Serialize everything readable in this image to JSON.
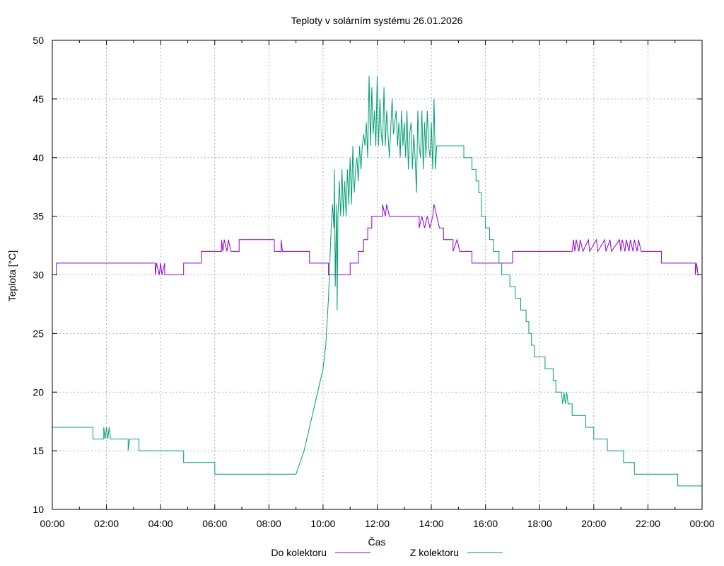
{
  "chart_data": {
    "type": "line",
    "title": "Teploty v solárním systému 26.01.2026",
    "xlabel": "Čas",
    "ylabel": "Teplota [°C]",
    "grid": true,
    "legend_position": "bottom",
    "xlim": [
      0,
      24
    ],
    "ylim": [
      10,
      50
    ],
    "x_tick_labels": [
      "00:00",
      "02:00",
      "04:00",
      "06:00",
      "08:00",
      "10:00",
      "12:00",
      "14:00",
      "16:00",
      "18:00",
      "20:00",
      "22:00",
      "00:00"
    ],
    "y_ticks": [
      10,
      15,
      20,
      25,
      30,
      35,
      40,
      45,
      50
    ],
    "series": [
      {
        "name": "Do kolektoru",
        "color": "#9400d3",
        "points": [
          [
            0,
            30
          ],
          [
            0.15,
            30
          ],
          [
            0.15,
            31
          ],
          [
            3.8,
            31
          ],
          [
            3.8,
            30
          ],
          [
            3.85,
            31
          ],
          [
            3.95,
            30
          ],
          [
            4.0,
            31
          ],
          [
            4.05,
            30
          ],
          [
            4.15,
            31
          ],
          [
            4.15,
            30
          ],
          [
            4.85,
            30
          ],
          [
            4.85,
            31
          ],
          [
            5.5,
            31
          ],
          [
            5.5,
            32
          ],
          [
            6.25,
            32
          ],
          [
            6.25,
            33
          ],
          [
            6.3,
            32
          ],
          [
            6.35,
            33
          ],
          [
            6.45,
            32
          ],
          [
            6.5,
            33
          ],
          [
            6.6,
            32
          ],
          [
            6.9,
            32
          ],
          [
            6.9,
            33
          ],
          [
            8.0,
            33
          ],
          [
            8.2,
            33
          ],
          [
            8.2,
            32
          ],
          [
            8.45,
            32
          ],
          [
            8.45,
            33
          ],
          [
            8.5,
            32
          ],
          [
            9.0,
            32
          ],
          [
            9.0,
            32
          ],
          [
            9.5,
            32
          ],
          [
            9.5,
            31
          ],
          [
            10.2,
            31
          ],
          [
            10.2,
            30
          ],
          [
            11.0,
            30
          ],
          [
            11.0,
            31
          ],
          [
            11.3,
            31
          ],
          [
            11.3,
            32
          ],
          [
            11.5,
            32
          ],
          [
            11.5,
            33
          ],
          [
            11.65,
            33
          ],
          [
            11.65,
            34
          ],
          [
            11.8,
            34
          ],
          [
            11.8,
            35
          ],
          [
            12.2,
            35
          ],
          [
            12.2,
            36
          ],
          [
            12.3,
            35
          ],
          [
            12.35,
            36
          ],
          [
            12.45,
            35
          ],
          [
            13.0,
            35
          ],
          [
            13.0,
            35
          ],
          [
            13.55,
            35
          ],
          [
            13.55,
            34
          ],
          [
            13.65,
            35
          ],
          [
            13.75,
            34
          ],
          [
            13.85,
            35
          ],
          [
            13.95,
            34
          ],
          [
            14.05,
            35
          ],
          [
            14.1,
            36
          ],
          [
            14.2,
            35
          ],
          [
            14.3,
            34
          ],
          [
            14.45,
            34
          ],
          [
            14.45,
            33
          ],
          [
            14.8,
            33
          ],
          [
            14.8,
            32
          ],
          [
            14.95,
            33
          ],
          [
            15.05,
            32
          ],
          [
            15.5,
            32
          ],
          [
            15.5,
            31
          ],
          [
            15.8,
            31
          ],
          [
            15.8,
            31
          ],
          [
            16.1,
            31
          ],
          [
            16.2,
            31
          ],
          [
            16.2,
            31
          ],
          [
            16.95,
            31
          ],
          [
            17.0,
            31
          ],
          [
            17.0,
            32
          ],
          [
            17.8,
            32
          ],
          [
            18.0,
            32
          ],
          [
            18.0,
            32
          ],
          [
            19.2,
            32
          ],
          [
            19.25,
            33
          ],
          [
            19.3,
            32
          ],
          [
            19.35,
            33
          ],
          [
            19.45,
            32
          ],
          [
            19.5,
            33
          ],
          [
            19.6,
            32
          ],
          [
            19.8,
            33
          ],
          [
            19.85,
            32
          ],
          [
            20.1,
            33
          ],
          [
            20.15,
            32
          ],
          [
            20.4,
            33
          ],
          [
            20.45,
            32
          ],
          [
            20.6,
            33
          ],
          [
            20.65,
            32
          ],
          [
            20.95,
            33
          ],
          [
            21.0,
            32
          ],
          [
            21.05,
            33
          ],
          [
            21.15,
            32
          ],
          [
            21.2,
            33
          ],
          [
            21.3,
            32
          ],
          [
            21.35,
            33
          ],
          [
            21.45,
            32
          ],
          [
            21.5,
            33
          ],
          [
            21.6,
            32
          ],
          [
            21.65,
            33
          ],
          [
            21.75,
            32
          ],
          [
            22.5,
            32
          ],
          [
            22.5,
            31
          ],
          [
            23.75,
            31
          ],
          [
            23.75,
            30
          ],
          [
            23.8,
            31
          ],
          [
            23.85,
            30
          ],
          [
            24.0,
            30
          ]
        ]
      },
      {
        "name": "Z kolektoru",
        "color": "#009e73",
        "points": [
          [
            0,
            17
          ],
          [
            1.5,
            17
          ],
          [
            1.5,
            16
          ],
          [
            1.9,
            16
          ],
          [
            1.9,
            17
          ],
          [
            1.95,
            16
          ],
          [
            2.0,
            17
          ],
          [
            2.05,
            16
          ],
          [
            2.1,
            17
          ],
          [
            2.15,
            16
          ],
          [
            2.8,
            16
          ],
          [
            2.8,
            15
          ],
          [
            2.85,
            16
          ],
          [
            3.2,
            16
          ],
          [
            3.2,
            15
          ],
          [
            4.85,
            15
          ],
          [
            4.85,
            14
          ],
          [
            6.0,
            14
          ],
          [
            6.0,
            13
          ],
          [
            7.6,
            13
          ],
          [
            9.0,
            13
          ],
          [
            9.0,
            13
          ],
          [
            9.15,
            14
          ],
          [
            9.3,
            15
          ],
          [
            9.4,
            16
          ],
          [
            9.5,
            17
          ],
          [
            9.6,
            18
          ],
          [
            9.7,
            19
          ],
          [
            9.8,
            20
          ],
          [
            9.9,
            21
          ],
          [
            10.0,
            22
          ],
          [
            10.05,
            23
          ],
          [
            10.1,
            24
          ],
          [
            10.15,
            26
          ],
          [
            10.2,
            28
          ],
          [
            10.25,
            31
          ],
          [
            10.3,
            34
          ],
          [
            10.35,
            36
          ],
          [
            10.4,
            34
          ],
          [
            10.42,
            39
          ],
          [
            10.45,
            29
          ],
          [
            10.5,
            36
          ],
          [
            10.52,
            27
          ],
          [
            10.55,
            35
          ],
          [
            10.6,
            38
          ],
          [
            10.65,
            35
          ],
          [
            10.7,
            39
          ],
          [
            10.75,
            35
          ],
          [
            10.8,
            38
          ],
          [
            10.85,
            35
          ],
          [
            10.9,
            39
          ],
          [
            10.95,
            36
          ],
          [
            11.0,
            40
          ],
          [
            11.05,
            36
          ],
          [
            11.1,
            41
          ],
          [
            11.15,
            37
          ],
          [
            11.2,
            39
          ],
          [
            11.25,
            40
          ],
          [
            11.3,
            38
          ],
          [
            11.35,
            41
          ],
          [
            11.4,
            39
          ],
          [
            11.45,
            41
          ],
          [
            11.5,
            42
          ],
          [
            11.55,
            41
          ],
          [
            11.6,
            43
          ],
          [
            11.65,
            40
          ],
          [
            11.7,
            47
          ],
          [
            11.75,
            41
          ],
          [
            11.8,
            46
          ],
          [
            11.85,
            42
          ],
          [
            11.9,
            44
          ],
          [
            11.95,
            41
          ],
          [
            12.0,
            47
          ],
          [
            12.05,
            41
          ],
          [
            12.1,
            45
          ],
          [
            12.15,
            42
          ],
          [
            12.2,
            41
          ],
          [
            12.25,
            46
          ],
          [
            12.3,
            41
          ],
          [
            12.35,
            44
          ],
          [
            12.4,
            42
          ],
          [
            12.45,
            40
          ],
          [
            12.55,
            45
          ],
          [
            12.6,
            42
          ],
          [
            12.7,
            44
          ],
          [
            12.75,
            41
          ],
          [
            12.8,
            43
          ],
          [
            12.85,
            40
          ],
          [
            12.9,
            44
          ],
          [
            12.95,
            41
          ],
          [
            13.0,
            43
          ],
          [
            13.05,
            40
          ],
          [
            13.1,
            44
          ],
          [
            13.15,
            39
          ],
          [
            13.2,
            42
          ],
          [
            13.25,
            43
          ],
          [
            13.3,
            39
          ],
          [
            13.35,
            42
          ],
          [
            13.4,
            40
          ],
          [
            13.45,
            37
          ],
          [
            13.5,
            44
          ],
          [
            13.55,
            41
          ],
          [
            13.6,
            40
          ],
          [
            13.65,
            44
          ],
          [
            13.7,
            39
          ],
          [
            13.75,
            43
          ],
          [
            13.8,
            40
          ],
          [
            13.85,
            44
          ],
          [
            13.9,
            41
          ],
          [
            13.95,
            40
          ],
          [
            14.0,
            43
          ],
          [
            14.05,
            39
          ],
          [
            14.1,
            45
          ],
          [
            14.15,
            39
          ],
          [
            14.2,
            41
          ],
          [
            14.3,
            41
          ],
          [
            14.5,
            41
          ],
          [
            15.0,
            41
          ],
          [
            15.2,
            41
          ],
          [
            15.2,
            40
          ],
          [
            15.5,
            40
          ],
          [
            15.5,
            39
          ],
          [
            15.65,
            39
          ],
          [
            15.65,
            38
          ],
          [
            15.75,
            38
          ],
          [
            15.75,
            37
          ],
          [
            15.85,
            37
          ],
          [
            15.85,
            35
          ],
          [
            16.0,
            35
          ],
          [
            16.0,
            34
          ],
          [
            16.15,
            34
          ],
          [
            16.15,
            33
          ],
          [
            16.3,
            33
          ],
          [
            16.3,
            32
          ],
          [
            16.5,
            32
          ],
          [
            16.5,
            31
          ],
          [
            16.6,
            31
          ],
          [
            16.6,
            30
          ],
          [
            16.9,
            30
          ],
          [
            16.9,
            29
          ],
          [
            17.1,
            29
          ],
          [
            17.1,
            28
          ],
          [
            17.3,
            28
          ],
          [
            17.3,
            27
          ],
          [
            17.5,
            27
          ],
          [
            17.5,
            26
          ],
          [
            17.6,
            26
          ],
          [
            17.6,
            25
          ],
          [
            17.7,
            25
          ],
          [
            17.7,
            24
          ],
          [
            17.8,
            24
          ],
          [
            17.8,
            23
          ],
          [
            18.2,
            23
          ],
          [
            18.2,
            22
          ],
          [
            18.5,
            22
          ],
          [
            18.5,
            21
          ],
          [
            18.6,
            21
          ],
          [
            18.6,
            20
          ],
          [
            18.8,
            20
          ],
          [
            18.85,
            19
          ],
          [
            18.9,
            20
          ],
          [
            18.95,
            19
          ],
          [
            19.0,
            20
          ],
          [
            19.05,
            19
          ],
          [
            19.2,
            19
          ],
          [
            19.2,
            18
          ],
          [
            19.7,
            18
          ],
          [
            19.7,
            17
          ],
          [
            20.0,
            17
          ],
          [
            20.0,
            16
          ],
          [
            20.5,
            16
          ],
          [
            20.5,
            15
          ],
          [
            21.1,
            15
          ],
          [
            21.1,
            14
          ],
          [
            21.5,
            14
          ],
          [
            21.5,
            13
          ],
          [
            23.1,
            13
          ],
          [
            23.1,
            12
          ],
          [
            24.0,
            12
          ]
        ]
      }
    ]
  }
}
